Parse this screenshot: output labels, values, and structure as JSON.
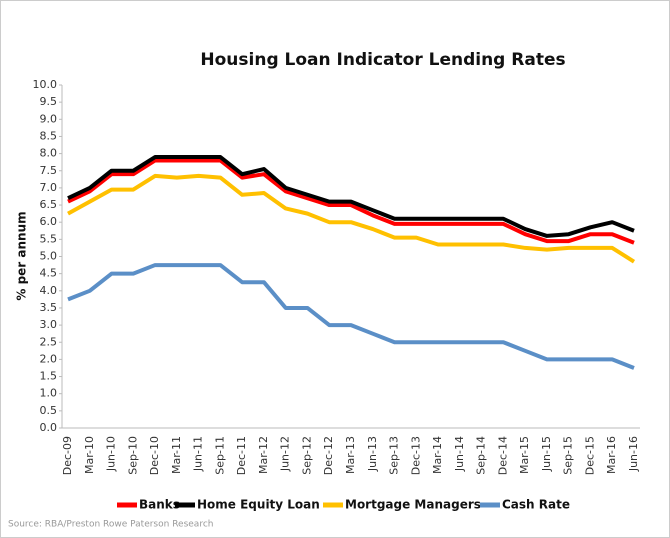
{
  "chart_data": {
    "type": "line",
    "title": "Housing Loan Indicator Lending Rates",
    "y_label": "% per annum",
    "source": "Source: RBA/Preston Rowe Paterson Research",
    "categories": [
      "Dec-09",
      "Mar-10",
      "Jun-10",
      "Sep-10",
      "Dec-10",
      "Mar-11",
      "Jun-11",
      "Sep-11",
      "Dec-11",
      "Mar-12",
      "Jun-12",
      "Sep-12",
      "Dec-12",
      "Mar-13",
      "Jun-13",
      "Sep-13",
      "Dec-13",
      "Mar-14",
      "Jun-14",
      "Sep-14",
      "Dec-14",
      "Mar-15",
      "Jun-15",
      "Sep-15",
      "Dec-15",
      "Mar-16",
      "Jun-16"
    ],
    "series": [
      {
        "name": "Banks",
        "color": "#ff0000",
        "values": [
          6.6,
          6.9,
          7.4,
          7.4,
          7.8,
          7.8,
          7.8,
          7.8,
          7.3,
          7.4,
          6.9,
          6.7,
          6.5,
          6.5,
          6.2,
          5.95,
          5.95,
          5.95,
          5.95,
          5.95,
          5.95,
          5.65,
          5.45,
          5.45,
          5.65,
          5.65,
          5.4
        ]
      },
      {
        "name": "Home Equity Loan",
        "color": "#000000",
        "values": [
          6.7,
          7.0,
          7.5,
          7.5,
          7.9,
          7.9,
          7.9,
          7.9,
          7.4,
          7.55,
          7.0,
          6.8,
          6.6,
          6.6,
          6.35,
          6.1,
          6.1,
          6.1,
          6.1,
          6.1,
          6.1,
          5.8,
          5.6,
          5.65,
          5.85,
          6.0,
          5.75
        ]
      },
      {
        "name": "Mortgage Managers",
        "color": "#ffc000",
        "values": [
          6.25,
          6.6,
          6.95,
          6.95,
          7.35,
          7.3,
          7.35,
          7.3,
          6.8,
          6.85,
          6.4,
          6.25,
          6.0,
          6.0,
          5.8,
          5.55,
          5.55,
          5.35,
          5.35,
          5.35,
          5.35,
          5.25,
          5.2,
          5.25,
          5.25,
          5.25,
          4.85
        ]
      },
      {
        "name": "Cash Rate",
        "color": "#5b8fc7",
        "values": [
          3.75,
          4.0,
          4.5,
          4.5,
          4.75,
          4.75,
          4.75,
          4.75,
          4.25,
          4.25,
          3.5,
          3.5,
          3.0,
          3.0,
          2.75,
          2.5,
          2.5,
          2.5,
          2.5,
          2.5,
          2.5,
          2.25,
          2.0,
          2.0,
          2.0,
          2.0,
          1.75
        ]
      }
    ],
    "ylim": [
      0,
      10
    ],
    "yticks": [
      {
        "value": 0,
        "label": "0.0"
      },
      {
        "value": 0.5,
        "label": "0.5"
      },
      {
        "value": 1,
        "label": "1.0"
      },
      {
        "value": 1.5,
        "label": "1.5"
      },
      {
        "value": 2,
        "label": "2.0"
      },
      {
        "value": 2.5,
        "label": "2.5"
      },
      {
        "value": 3,
        "label": "3.0"
      },
      {
        "value": 3.5,
        "label": "3.5"
      },
      {
        "value": 4,
        "label": "4.0"
      },
      {
        "value": 4.5,
        "label": "4.5"
      },
      {
        "value": 5,
        "label": "5.0"
      },
      {
        "value": 5.5,
        "label": "5.5"
      },
      {
        "value": 6,
        "label": "6.0"
      },
      {
        "value": 6.5,
        "label": "6.5"
      },
      {
        "value": 7,
        "label": "7.0"
      },
      {
        "value": 7.5,
        "label": "7.5"
      },
      {
        "value": 8,
        "label": "8.0"
      },
      {
        "value": 8.5,
        "label": "8.5"
      },
      {
        "value": 9,
        "label": "9.0"
      },
      {
        "value": 9.5,
        "label": "9.5"
      },
      {
        "value": 10,
        "label": "10.0"
      }
    ],
    "grid": false,
    "legend": "bottom"
  }
}
